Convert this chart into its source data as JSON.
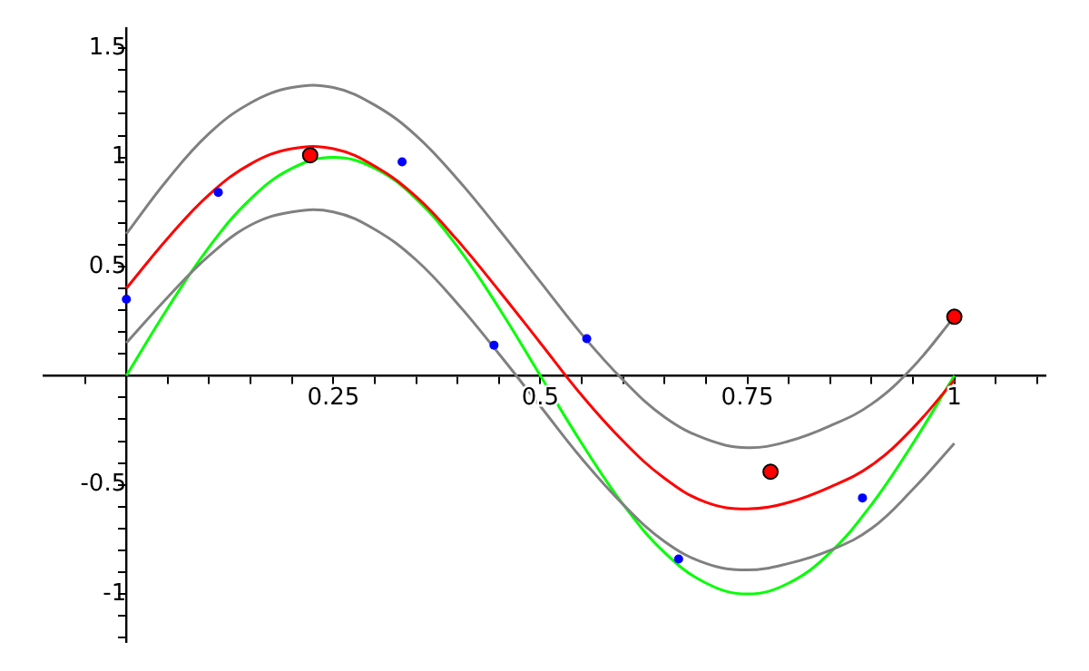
{
  "chart_data": {
    "type": "line",
    "x": [
      0,
      0.05,
      0.1,
      0.15,
      0.2,
      0.25,
      0.3,
      0.35,
      0.4,
      0.45,
      0.5,
      0.55,
      0.6,
      0.65,
      0.7,
      0.75,
      0.8,
      0.85,
      0.9,
      0.95,
      1
    ],
    "series": [
      {
        "color": "#808080",
        "values": [
          0.65,
          0.9,
          1.11,
          1.25,
          1.32,
          1.32,
          1.24,
          1.1,
          0.9,
          0.67,
          0.43,
          0.19,
          -0.02,
          -0.19,
          -0.29,
          -0.33,
          -0.3,
          -0.23,
          -0.13,
          0.04,
          0.27
        ]
      },
      {
        "color": "#808080",
        "values": [
          0.15,
          0.36,
          0.55,
          0.69,
          0.75,
          0.75,
          0.67,
          0.53,
          0.33,
          0.1,
          -0.14,
          -0.38,
          -0.59,
          -0.76,
          -0.86,
          -0.89,
          -0.86,
          -0.8,
          -0.7,
          -0.52,
          -0.31
        ]
      },
      {
        "color": "#ff0000",
        "values": [
          0.4,
          0.63,
          0.83,
          0.97,
          1.04,
          1.04,
          0.96,
          0.82,
          0.62,
          0.39,
          0.15,
          -0.09,
          -0.3,
          -0.47,
          -0.58,
          -0.61,
          -0.58,
          -0.51,
          -0.41,
          -0.24,
          -0.02
        ]
      },
      {
        "color": "#00ff00",
        "values": [
          0,
          0.31,
          0.59,
          0.81,
          0.95,
          1,
          0.95,
          0.81,
          0.59,
          0.31,
          0,
          -0.31,
          -0.59,
          -0.81,
          -0.95,
          -1,
          -0.95,
          -0.81,
          -0.59,
          -0.31,
          0
        ]
      },
      {
        "type": "scatter",
        "marker": "circle",
        "color": "#0000ff",
        "x": [
          0,
          0.111,
          0.333,
          0.444,
          0.556,
          0.667,
          0.889
        ],
        "values": [
          0.35,
          0.84,
          0.98,
          0.14,
          0.17,
          -0.84,
          -0.56
        ]
      },
      {
        "type": "scatter",
        "marker": "circle",
        "color": "#ff0000",
        "x": [
          0.222,
          0.778,
          1
        ],
        "values": [
          1.01,
          -0.44,
          0.27
        ]
      }
    ],
    "marker": "none",
    "line_style": "solid",
    "xlim": [
      -0.1,
      1.11
    ],
    "xticks": [
      {
        "value": -0.05,
        "label": null
      },
      {
        "value": 0,
        "label": null
      },
      {
        "value": 0.05,
        "label": null
      },
      {
        "value": 0.1,
        "label": null
      },
      {
        "value": 0.15,
        "label": null
      },
      {
        "value": 0.2,
        "label": null
      },
      0.25,
      {
        "value": 0.3,
        "label": null
      },
      {
        "value": 0.35,
        "label": null
      },
      {
        "value": 0.4,
        "label": null
      },
      {
        "value": 0.45,
        "label": null
      },
      0.5,
      {
        "value": 0.55,
        "label": null
      },
      {
        "value": 0.6,
        "label": null
      },
      {
        "value": 0.65,
        "label": null
      },
      {
        "value": 0.7,
        "label": null
      },
      0.75,
      {
        "value": 0.8,
        "label": null
      },
      {
        "value": 0.85,
        "label": null
      },
      {
        "value": 0.9,
        "label": null
      },
      {
        "value": 0.95,
        "label": null
      },
      1,
      {
        "value": 1.05,
        "label": null
      },
      {
        "value": 1.1,
        "label": null
      }
    ],
    "ylim": [
      -1.22,
      1.59
    ],
    "yticks": [
      {
        "value": -1.2,
        "label": null
      },
      {
        "value": -1.1,
        "label": null
      },
      -1,
      {
        "value": -0.9,
        "label": null
      },
      {
        "value": -0.8,
        "label": null
      },
      {
        "value": -0.7,
        "label": null
      },
      {
        "value": -0.6,
        "label": null
      },
      -0.5,
      {
        "value": -0.4,
        "label": null
      },
      {
        "value": -0.3,
        "label": null
      },
      {
        "value": -0.2,
        "label": null
      },
      {
        "value": -0.1,
        "label": null
      },
      {
        "value": 0,
        "label": null
      },
      {
        "value": 0.1,
        "label": null
      },
      {
        "value": 0.2,
        "label": null
      },
      {
        "value": 0.3,
        "label": null
      },
      {
        "value": 0.4,
        "label": null
      },
      0.5,
      {
        "value": 0.6,
        "label": null
      },
      {
        "value": 0.7,
        "label": null
      },
      {
        "value": 0.8,
        "label": null
      },
      {
        "value": 0.9,
        "label": null
      },
      1,
      {
        "value": 1.1,
        "label": null
      },
      {
        "value": 1.2,
        "label": null
      },
      {
        "value": 1.3,
        "label": null
      },
      {
        "value": 1.4,
        "label": null
      },
      1.5
    ]
  }
}
